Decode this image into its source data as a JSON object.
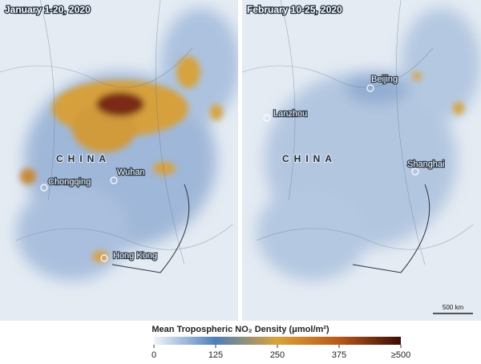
{
  "panels": [
    {
      "title": "January 1-20, 2020",
      "country": "CHINA",
      "cities": [
        "Chongqing",
        "Wuhan",
        "Hong Kong"
      ]
    },
    {
      "title": "February 10-25, 2020",
      "country": "CHINA",
      "cities": [
        "Beijing",
        "Lanzhou",
        "Shanghai"
      ],
      "scale_bar": "500 km"
    }
  ],
  "legend": {
    "title": "Mean Tropospheric NO₂ Density (μmol/m²)",
    "ticks": [
      0,
      125,
      250,
      375,
      {
        "value": 500,
        "label": "≥500"
      }
    ]
  }
}
